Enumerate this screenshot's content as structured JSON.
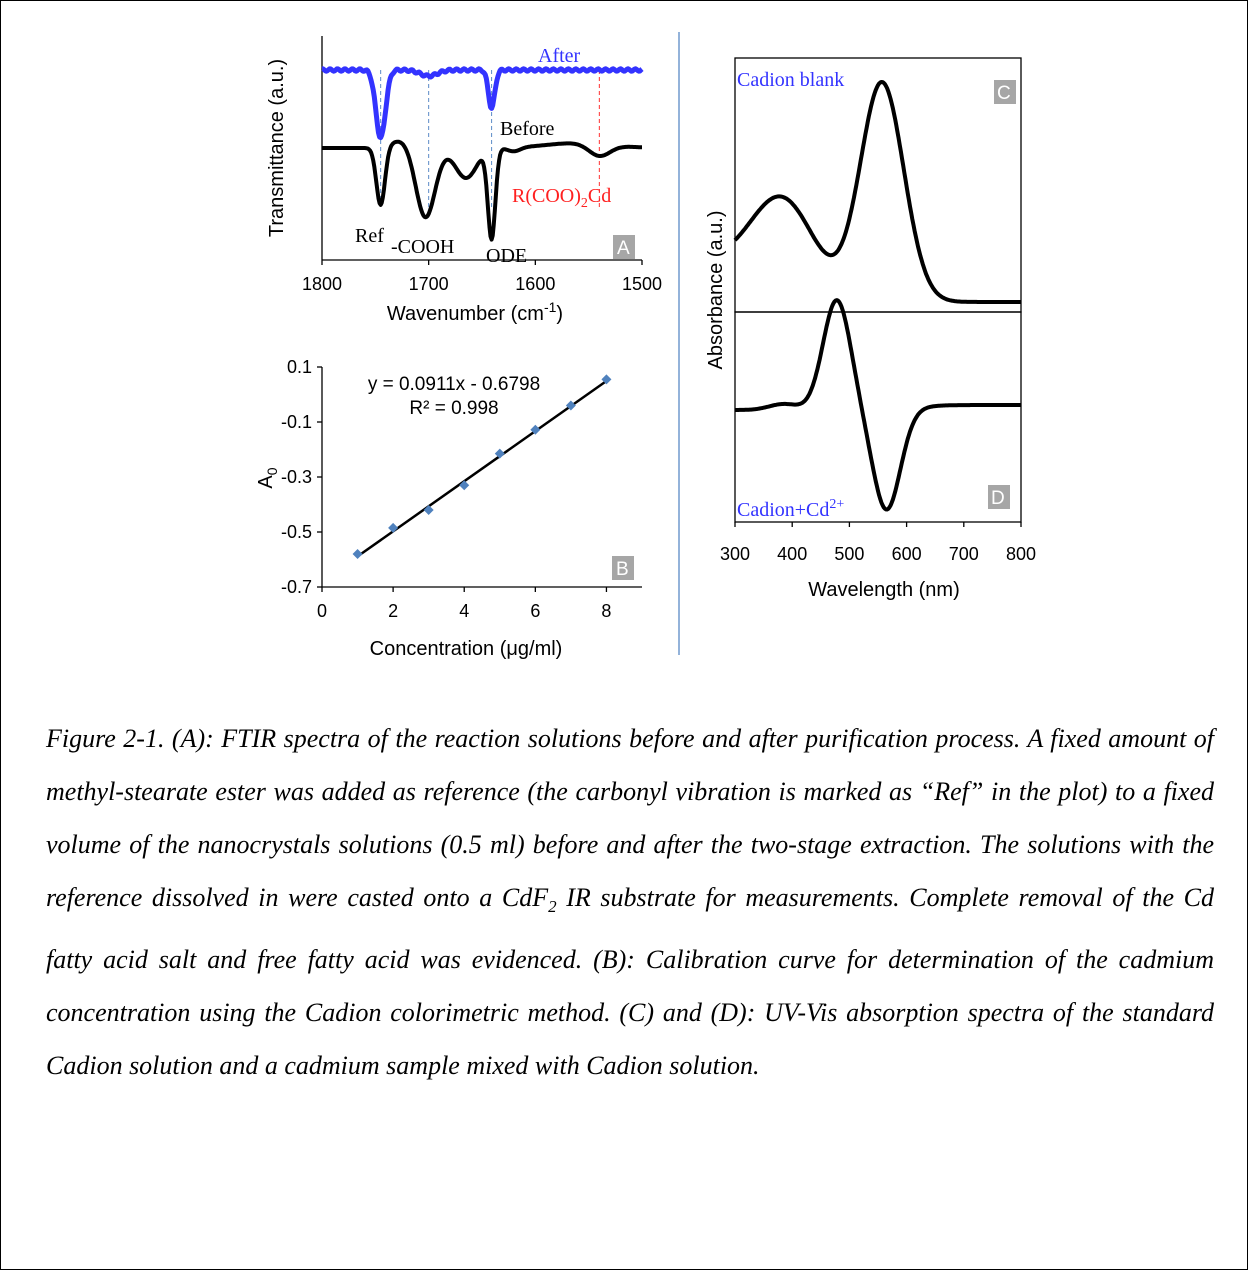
{
  "chart_data": [
    {
      "panel": "A",
      "type": "line",
      "ylabel": "Transmittance (a.u.)",
      "xlabel": "Wavenumber (cm",
      "xlabel_sup": "-1",
      "xlabel_end": ")",
      "xlim": [
        1800,
        1500
      ],
      "xticks": [
        "1800",
        "1700",
        "1600",
        "1500"
      ],
      "series": [
        {
          "name": "After",
          "color": "#3333ff"
        },
        {
          "name": "Before",
          "color": "#000000"
        }
      ],
      "markers": [
        {
          "x": 1745,
          "color": "#5b8ac6"
        },
        {
          "x": 1700,
          "color": "#5b8ac6"
        },
        {
          "x": 1641,
          "color": "#5b8ac6"
        },
        {
          "x": 1540,
          "color": "#ff3030"
        }
      ],
      "annotations": {
        "ref": "Ref",
        "cooh": "-COOH",
        "ode": "ODE",
        "salt_pre": "R(COO)",
        "salt_sub": "2",
        "salt_post": "Cd"
      },
      "panel_label": "A"
    },
    {
      "panel": "B",
      "type": "scatter",
      "xlabel": "Concentration (μg/ml)",
      "ylabel": "A",
      "ylabel_sub": "0",
      "xlim": [
        0,
        9
      ],
      "ylim": [
        -0.7,
        0.1
      ],
      "xticks": [
        "0",
        "2",
        "4",
        "6",
        "8"
      ],
      "yticks": [
        "0.1",
        "-0.1",
        "-0.3",
        "-0.5",
        "-0.7"
      ],
      "x": [
        1,
        2,
        3,
        4,
        5,
        6,
        7,
        8
      ],
      "y": [
        -0.58,
        -0.485,
        -0.42,
        -0.33,
        -0.215,
        -0.128,
        -0.04,
        0.055
      ],
      "fit": {
        "slope": 0.0911,
        "intercept": -0.6798,
        "equation": "y = 0.0911x - 0.6798",
        "r2": "R² = 0.998"
      },
      "marker_color": "#4f81bd",
      "panel_label": "B"
    },
    {
      "panel": "C/D",
      "type": "line",
      "xlabel": "Wavelength (nm)",
      "ylabel": "Absorbance (a.u.)",
      "xlim": [
        300,
        800
      ],
      "xticks": [
        "300",
        "400",
        "500",
        "600",
        "700",
        "800"
      ],
      "series": [
        {
          "name": "Cadion blank",
          "panel": "C"
        },
        {
          "name": "Cadion+Cd",
          "sup": "2+",
          "panel": "D"
        }
      ],
      "panel_labels": [
        "C",
        "D"
      ],
      "label_color": "#3333ff"
    }
  ],
  "caption": {
    "figure": "Figure 2-1. (A): FTIR spectra of the reaction solutions before and after purification process. A fixed amount of methyl-stearate ester was added as reference (the carbonyl vibration is marked as “Ref” in the plot) to a fixed volume of the nanocrystals solutions (0.5 ml) before and after the two-stage extraction. The solutions with the reference dissolved in were casted onto a CdF",
    "sub": "2",
    "rest": " IR substrate for measurements. Complete removal of the Cd fatty acid salt and free fatty acid was evidenced. (B): Calibration curve for determination of the cadmium concentration using the Cadion colorimetric method. (C) and (D): UV-Vis absorption spectra of the standard Cadion solution and a cadmium sample mixed with Cadion solution."
  }
}
